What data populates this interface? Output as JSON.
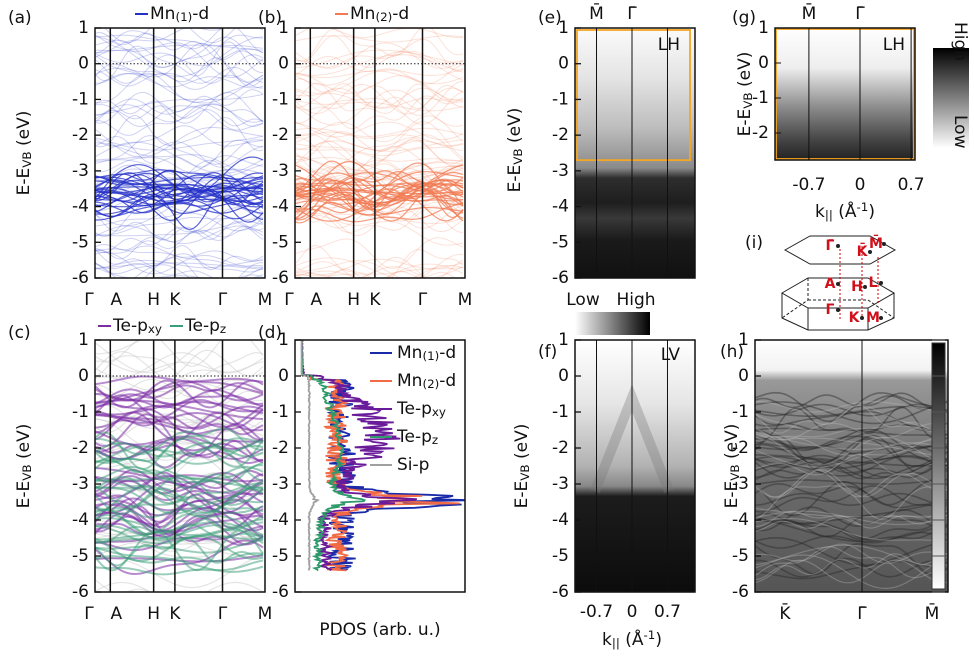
{
  "energy_axis": {
    "main": "E-E",
    "sub": "VB",
    "unit": " (eV)",
    "ticks": [
      1,
      0,
      -1,
      -2,
      -3,
      -4,
      -5,
      -6
    ]
  },
  "k_axis": {
    "main": "k",
    "sub": "||",
    "unit": " (Å",
    "sup": "-1",
    "close": ")"
  },
  "k_path": [
    "Γ",
    "A",
    "H",
    "K",
    "Γ",
    "M"
  ],
  "a": {
    "label": "(a)",
    "legend": [
      {
        "text": "Mn",
        "sub": "(1)",
        "tail": "-d",
        "color": "#2430c8"
      }
    ]
  },
  "b": {
    "label": "(b)",
    "legend": [
      {
        "text": "Mn",
        "sub": "(2)",
        "tail": "-d",
        "color": "#f07a52"
      }
    ]
  },
  "c": {
    "label": "(c)",
    "legend": [
      {
        "text": "Te-p",
        "sub": "xy",
        "color": "#7b2da6"
      },
      {
        "text": "Te-p",
        "sub": "z",
        "color": "#3a9e78"
      }
    ]
  },
  "d": {
    "label": "(d)",
    "xlabel": "PDOS (arb. u.)",
    "legend": [
      {
        "text": "Mn",
        "sub": "(1)",
        "tail": "-d",
        "color": "#1a2aa8"
      },
      {
        "text": "Mn",
        "sub": "(2)",
        "tail": "-d",
        "color": "#f26b45"
      },
      {
        "text": "Te-p",
        "sub": "xy",
        "color": "#6a1b9a"
      },
      {
        "text": "Te-p",
        "sub": "z",
        "color": "#2e9a6a"
      },
      {
        "text": "Si-p",
        "color": "#a0a0a0"
      }
    ]
  },
  "e": {
    "label": "(e)",
    "polarization": "LH",
    "k_points": [
      "M̄",
      "Γ̄"
    ]
  },
  "f": {
    "label": "(f)",
    "polarization": "LV",
    "kticks": [
      -0.7,
      0,
      0.7
    ]
  },
  "g": {
    "label": "(g)",
    "polarization": "LH",
    "k_points": [
      "M̄",
      "Γ̄"
    ],
    "yticks": [
      1,
      0,
      -1,
      -2
    ],
    "kticks": [
      -0.7,
      0,
      0.7
    ],
    "colorbar": [
      "High",
      "Low"
    ]
  },
  "h": {
    "label": "(h)",
    "k_points": [
      "K̄",
      "Γ̄",
      "M̄"
    ]
  },
  "i": {
    "label": "(i)",
    "points": [
      "Γ̄",
      "K̄",
      "M̄",
      "A",
      "H",
      "L",
      "Γ",
      "K",
      "M"
    ]
  },
  "colorbar": [
    "Low",
    "High"
  ]
}
